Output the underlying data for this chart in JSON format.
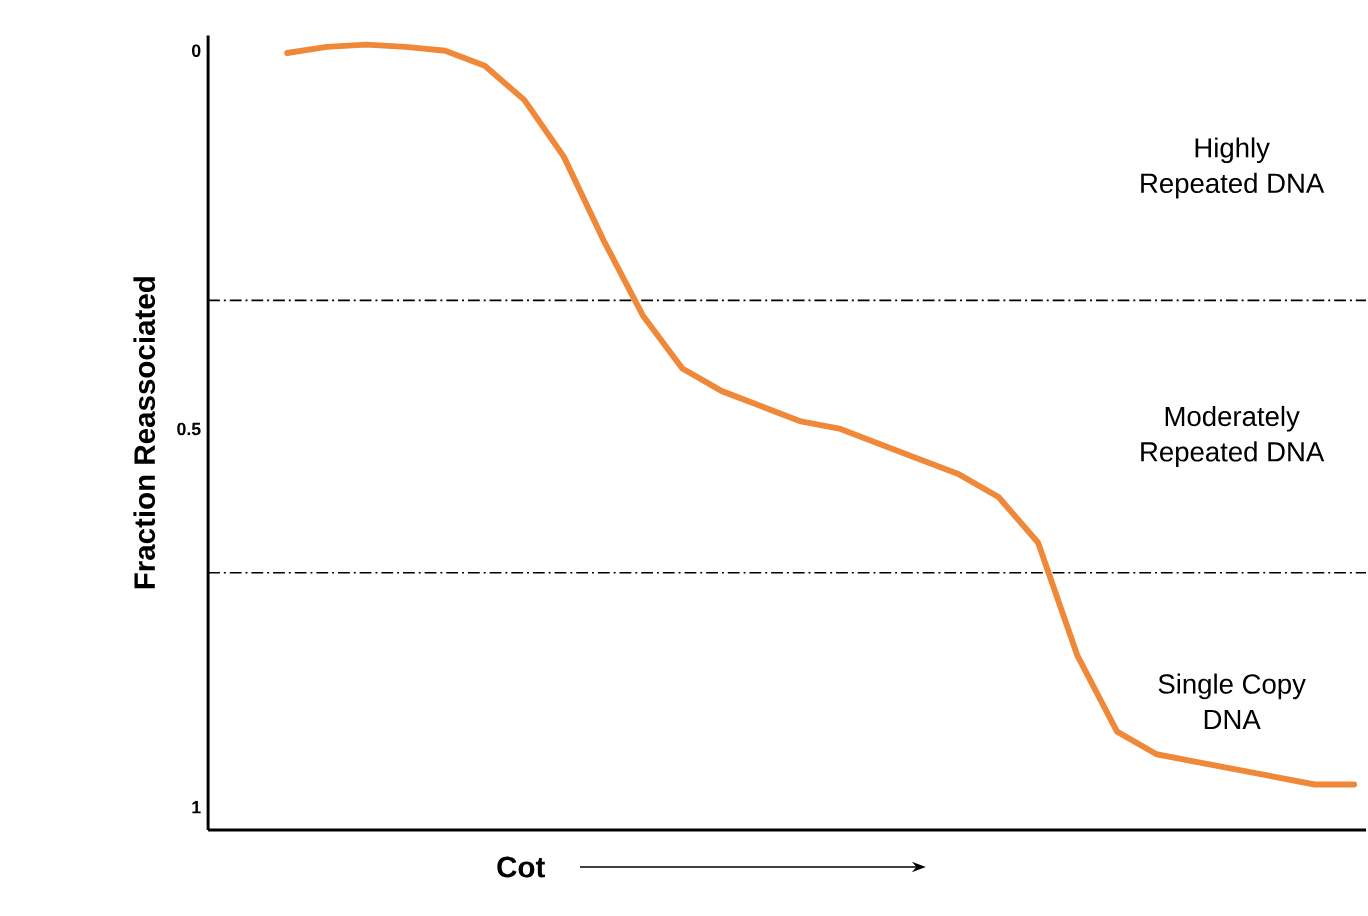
{
  "chart_data": {
    "type": "line",
    "xlabel": "Cot",
    "ylabel": "Fraction Reassociated",
    "categories": [
      null,
      null,
      null,
      null,
      null,
      null,
      null,
      null,
      null,
      null,
      null,
      null,
      null,
      null,
      null,
      null,
      null,
      null,
      null,
      null,
      null,
      null,
      null,
      null,
      null,
      null,
      null,
      null
    ],
    "values": [
      0.003,
      -0.005,
      -0.008,
      -0.005,
      0,
      0.02,
      0.065,
      0.14,
      0.25,
      0.35,
      0.42,
      0.45,
      0.47,
      0.49,
      0.5,
      0.52,
      0.54,
      0.56,
      0.59,
      0.65,
      0.8,
      0.9,
      0.93,
      0.94,
      0.95,
      0.96,
      0.97,
      0.97
    ],
    "color": "#f0883a",
    "ylim": [
      1.03,
      -0.02
    ],
    "yticks": [
      0,
      0.5,
      1
    ],
    "ref_lines": [
      {
        "axis": "y",
        "value": 0.33,
        "color": "#000000",
        "line_style": "dashdot"
      },
      {
        "axis": "y",
        "value": 0.69,
        "color": "#000000",
        "line_style": "dashdot"
      }
    ],
    "annotations": [
      "Highly\nRepeated DNA",
      "Moderately\nRepeated DNA",
      "Single Copy\nDNA"
    ]
  }
}
